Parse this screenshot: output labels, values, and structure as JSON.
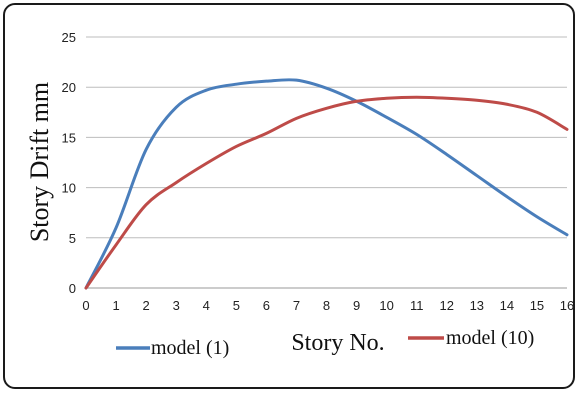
{
  "chart_data": {
    "type": "line",
    "xlabel": "Story No.",
    "ylabel": "Story Drift  mm",
    "xlim": [
      0,
      16
    ],
    "ylim": [
      0,
      25
    ],
    "x_ticks": [
      "0",
      "1",
      "2",
      "3",
      "4",
      "5",
      "6",
      "7",
      "8",
      "9",
      "10",
      "11",
      "12",
      "13",
      "14",
      "15",
      "16"
    ],
    "y_ticks": [
      "0",
      "5",
      "10",
      "15",
      "20",
      "25"
    ],
    "grid": "horizontal",
    "legend_position": "bottom",
    "x": [
      0,
      1,
      2,
      3,
      4,
      5,
      6,
      7,
      8,
      9,
      10,
      11,
      12,
      13,
      14,
      15,
      16
    ],
    "series": [
      {
        "name": "model (1)",
        "color": "#4a7ebb",
        "values": [
          0,
          6,
          13.8,
          18,
          19.7,
          20.3,
          20.6,
          20.7,
          19.9,
          18.6,
          17,
          15.3,
          13.3,
          11.2,
          9.1,
          7.1,
          5.3
        ]
      },
      {
        "name": "model (10)",
        "color": "#be4b48",
        "values": [
          0,
          4.3,
          8.3,
          10.5,
          12.4,
          14.1,
          15.4,
          16.9,
          17.9,
          18.6,
          18.9,
          19,
          18.9,
          18.7,
          18.3,
          17.5,
          15.8
        ]
      }
    ]
  }
}
